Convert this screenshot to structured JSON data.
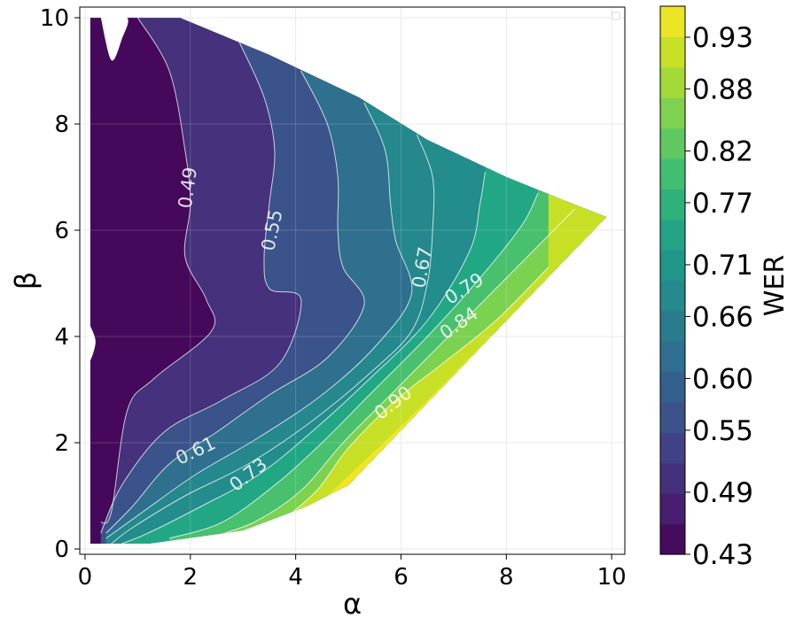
{
  "chart_data": {
    "type": "contour",
    "title": "",
    "xlabel": "α",
    "ylabel": "β",
    "xlim": [
      -0.1,
      10.25
    ],
    "ylim": [
      -0.1,
      10.2
    ],
    "x_ticks": [
      0,
      2,
      4,
      6,
      8,
      10
    ],
    "y_ticks": [
      0,
      2,
      4,
      6,
      8,
      10
    ],
    "grid": true,
    "legend": "top-right (empty)",
    "colormap": "viridis",
    "colorbar": {
      "label": "WER",
      "range": [
        0.43,
        0.96
      ],
      "ticks": [
        "0.43",
        "0.49",
        "0.55",
        "0.60",
        "0.66",
        "0.71",
        "0.77",
        "0.82",
        "0.88",
        "0.93"
      ]
    },
    "data_region": {
      "boundary": [
        [
          0.1,
          10.0
        ],
        [
          1.8,
          10.0
        ],
        [
          3.5,
          9.3
        ],
        [
          5.2,
          8.5
        ],
        [
          6.5,
          7.7
        ],
        [
          8.0,
          7.0
        ],
        [
          9.0,
          6.6
        ],
        [
          9.9,
          6.25
        ],
        [
          8.0,
          4.3
        ],
        [
          5.0,
          1.2
        ],
        [
          4.2,
          0.8
        ],
        [
          3.0,
          0.35
        ],
        [
          1.2,
          0.1
        ],
        [
          0.1,
          0.1
        ]
      ],
      "top_left_hole": [
        [
          0.3,
          10.0
        ],
        [
          0.5,
          9.2
        ],
        [
          0.7,
          9.6
        ],
        [
          0.8,
          10.0
        ]
      ],
      "left_hole": [
        [
          0.05,
          4.3
        ],
        [
          0.2,
          3.9
        ],
        [
          0.05,
          3.5
        ]
      ]
    },
    "contour_lines": [
      {
        "level": 0.49,
        "label": "0.49",
        "points": [
          [
            1.0,
            10.0
          ],
          [
            1.6,
            9.0
          ],
          [
            1.9,
            7.5
          ],
          [
            2.0,
            6.5
          ],
          [
            1.9,
            5.5
          ],
          [
            2.3,
            4.7
          ],
          [
            2.4,
            4.1
          ],
          [
            1.3,
            3.2
          ],
          [
            0.8,
            2.6
          ],
          [
            0.5,
            0.7
          ],
          [
            0.3,
            0.5
          ]
        ],
        "label_at": [
          1.95,
          6.8
        ],
        "label_angle": -82
      },
      {
        "level": 0.55,
        "label": "0.55",
        "points": [
          [
            2.9,
            9.6
          ],
          [
            3.4,
            8.5
          ],
          [
            3.6,
            7.5
          ],
          [
            3.5,
            6.5
          ],
          [
            3.4,
            5.5
          ],
          [
            3.5,
            4.9
          ],
          [
            4.1,
            4.7
          ],
          [
            3.7,
            3.5
          ],
          [
            2.6,
            2.8
          ],
          [
            1.5,
            2.2
          ],
          [
            0.7,
            1.2
          ],
          [
            0.3,
            0.3
          ]
        ],
        "label_at": [
          3.55,
          6.0
        ],
        "label_angle": -78
      },
      {
        "level": 0.61,
        "label": "0.61",
        "points": [
          [
            4.1,
            9.0
          ],
          [
            4.6,
            8.0
          ],
          [
            4.8,
            7.0
          ],
          [
            4.8,
            6.0
          ],
          [
            4.9,
            5.3
          ],
          [
            5.3,
            4.6
          ],
          [
            4.6,
            3.6
          ],
          [
            3.5,
            2.9
          ],
          [
            2.5,
            2.2
          ],
          [
            1.6,
            1.6
          ],
          [
            0.9,
            0.8
          ],
          [
            0.4,
            0.3
          ]
        ],
        "label_at": [
          2.1,
          1.85
        ],
        "label_angle": -25
      },
      {
        "level": 0.66,
        "label": "",
        "points": [
          [
            5.3,
            8.4
          ],
          [
            5.7,
            7.5
          ],
          [
            5.8,
            6.5
          ],
          [
            5.9,
            5.8
          ],
          [
            6.2,
            4.8
          ],
          [
            5.5,
            3.8
          ],
          [
            4.5,
            2.9
          ],
          [
            3.3,
            2.1
          ],
          [
            2.1,
            1.4
          ],
          [
            1.1,
            0.7
          ],
          [
            0.4,
            0.2
          ]
        ],
        "label_at": null,
        "label_angle": 0
      },
      {
        "level": 0.67,
        "label": "0.67",
        "points": [
          [
            6.3,
            7.8
          ],
          [
            6.6,
            7.0
          ],
          [
            6.6,
            6.0
          ],
          [
            6.5,
            5.0
          ],
          [
            6.2,
            4.1
          ],
          [
            5.4,
            3.3
          ],
          [
            4.3,
            2.4
          ],
          [
            3.1,
            1.6
          ],
          [
            1.9,
            1.0
          ],
          [
            0.9,
            0.4
          ],
          [
            0.5,
            0.1
          ]
        ],
        "label_at": [
          6.4,
          5.3
        ],
        "label_angle": -80
      },
      {
        "level": 0.73,
        "label": "0.73",
        "points": [
          [
            7.6,
            7.1
          ],
          [
            7.5,
            6.5
          ],
          [
            7.3,
            5.6
          ],
          [
            6.5,
            4.3
          ],
          [
            5.4,
            3.2
          ],
          [
            4.3,
            2.2
          ],
          [
            3.3,
            1.4
          ],
          [
            2.2,
            0.8
          ],
          [
            1.2,
            0.3
          ],
          [
            0.7,
            0.1
          ]
        ],
        "label_at": [
          3.1,
          1.4
        ],
        "label_angle": -38
      },
      {
        "level": 0.79,
        "label": "0.79",
        "points": [
          [
            8.6,
            6.7
          ],
          [
            8.3,
            6.1
          ],
          [
            7.5,
            5.1
          ],
          [
            6.5,
            4.0
          ],
          [
            5.4,
            2.9
          ],
          [
            4.5,
            2.0
          ],
          [
            3.6,
            1.2
          ],
          [
            2.6,
            0.5
          ],
          [
            1.6,
            0.2
          ]
        ],
        "label_at": [
          7.2,
          4.9
        ],
        "label_angle": -32
      },
      {
        "level": 0.84,
        "label": "0.84",
        "points": [
          [
            9.3,
            6.4
          ],
          [
            8.5,
            5.6
          ],
          [
            7.5,
            4.6
          ],
          [
            6.6,
            3.7
          ],
          [
            5.7,
            2.8
          ],
          [
            4.9,
            2.0
          ],
          [
            4.1,
            1.1
          ],
          [
            3.2,
            0.5
          ],
          [
            2.3,
            0.2
          ]
        ],
        "label_at": [
          7.1,
          4.25
        ],
        "label_angle": -35
      },
      {
        "level": 0.9,
        "label": "0.90",
        "points": [
          [
            8.8,
            5.3
          ],
          [
            7.8,
            4.3
          ],
          [
            6.8,
            3.5
          ],
          [
            5.9,
            2.8
          ],
          [
            5.0,
            1.9
          ],
          [
            4.4,
            1.1
          ],
          [
            3.7,
            0.5
          ]
        ],
        "label_at": [
          5.85,
          2.75
        ],
        "label_angle": -38
      }
    ],
    "filled_band_color_source": "WER field estimated from contour lines; minimum ~0.43 near α=0, maximum ~0.96 along lower-right edge"
  }
}
